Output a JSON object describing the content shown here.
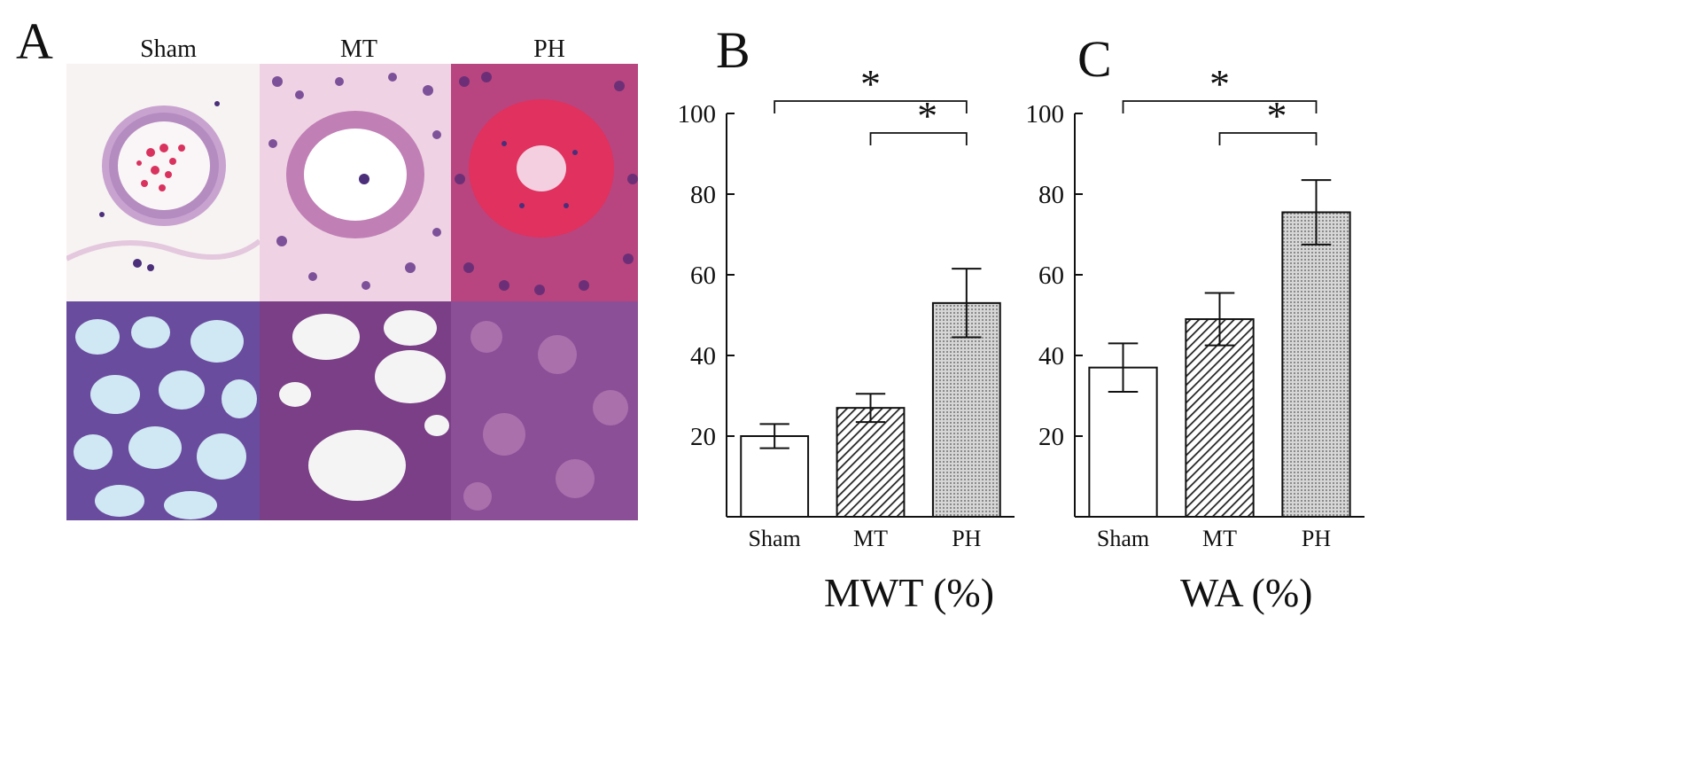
{
  "panel_a": {
    "letter": "A",
    "columns": [
      "Sham",
      "MT",
      "PH"
    ]
  },
  "colors": {
    "he_pink": "#e8a7c8",
    "he_purple": "#6a3b8c",
    "he_red": "#d9325e",
    "lumen_blue": "#d8eef5",
    "bar_edge": "#111111"
  },
  "chart_data": [
    {
      "panel": "B",
      "type": "bar",
      "categories": [
        "Sham",
        "MT",
        "PH"
      ],
      "values": [
        20,
        27,
        53
      ],
      "errors": [
        3,
        3.5,
        8.5
      ],
      "fills": [
        "white",
        "hatch",
        "dots"
      ],
      "xlabel": "MWT (%)",
      "ylabel": "",
      "ylim": [
        0,
        100
      ],
      "yticks": [
        20,
        40,
        60,
        80,
        100
      ],
      "significance": [
        {
          "from": "Sham",
          "to": "PH",
          "label": "*"
        },
        {
          "from": "MT",
          "to": "PH",
          "label": "*"
        }
      ]
    },
    {
      "panel": "C",
      "type": "bar",
      "categories": [
        "Sham",
        "MT",
        "PH"
      ],
      "values": [
        37,
        49,
        75.5
      ],
      "errors": [
        6,
        6.5,
        8
      ],
      "fills": [
        "white",
        "hatch",
        "dots"
      ],
      "xlabel": "WA (%)",
      "ylabel": "",
      "ylim": [
        0,
        100
      ],
      "yticks": [
        20,
        40,
        60,
        80,
        100
      ],
      "significance": [
        {
          "from": "Sham",
          "to": "PH",
          "label": "*"
        },
        {
          "from": "MT",
          "to": "PH",
          "label": "*"
        }
      ]
    }
  ]
}
